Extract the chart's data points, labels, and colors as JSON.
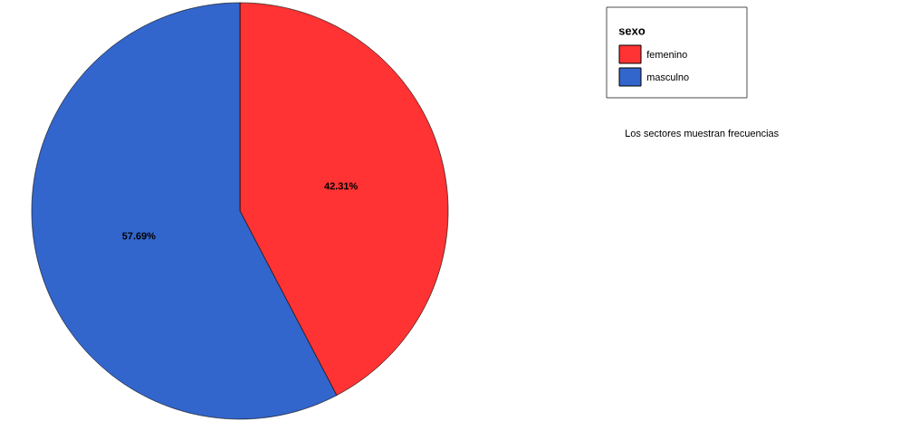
{
  "chart_data": {
    "type": "pie",
    "legend_title": "sexo",
    "categories": [
      "femenino",
      "masculno"
    ],
    "values": [
      42.31,
      57.69
    ],
    "colors": [
      "#ff3333",
      "#3366cc"
    ],
    "value_labels": [
      "42.31%",
      "57.69%"
    ],
    "legend": "top right",
    "annotations": [
      "Los sectores muestran frecuencias"
    ]
  }
}
